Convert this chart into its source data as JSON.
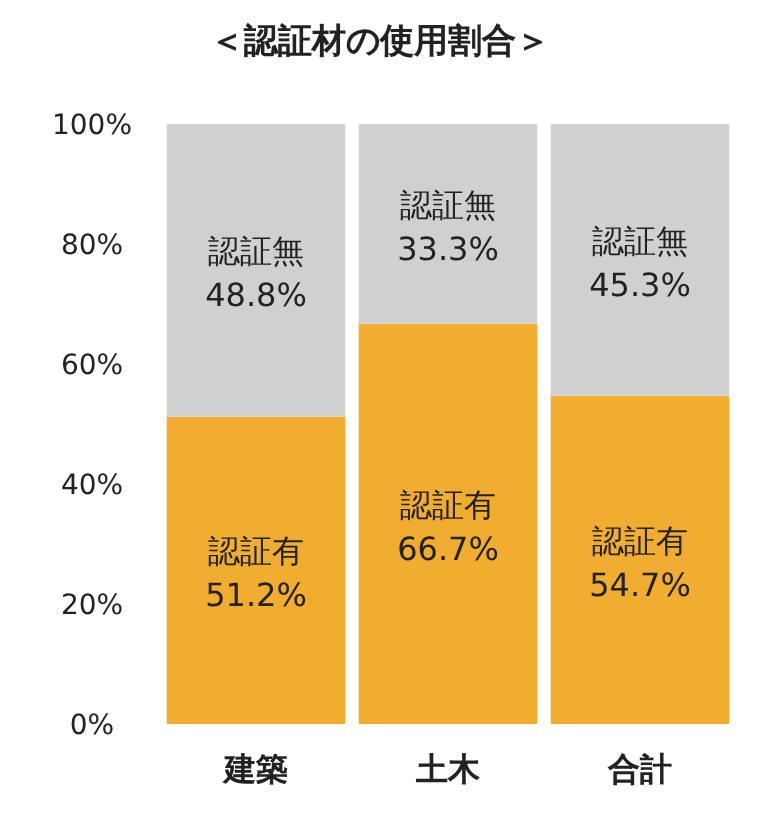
{
  "chart_data": {
    "type": "bar",
    "title": "＜認証材の使用割合＞",
    "stacked": true,
    "categories": [
      "建築",
      "土木",
      "合計"
    ],
    "series": [
      {
        "name": "認証有",
        "color": "#f0ad30",
        "values": [
          51.2,
          66.7,
          54.7
        ],
        "value_labels": [
          "51.2%",
          "66.7%",
          "54.7%"
        ]
      },
      {
        "name": "認証無",
        "color": "#d0d0d0",
        "values": [
          48.8,
          33.3,
          45.3
        ],
        "value_labels": [
          "48.8%",
          "33.3%",
          "45.3%"
        ]
      }
    ],
    "ylim": [
      0,
      100
    ],
    "yticks": [
      {
        "value": 0,
        "label": "0%"
      },
      {
        "value": 20,
        "label": "20%"
      },
      {
        "value": 40,
        "label": "40%"
      },
      {
        "value": 60,
        "label": "60%"
      },
      {
        "value": 80,
        "label": "80%"
      },
      {
        "value": 100,
        "label": "100%"
      }
    ]
  }
}
